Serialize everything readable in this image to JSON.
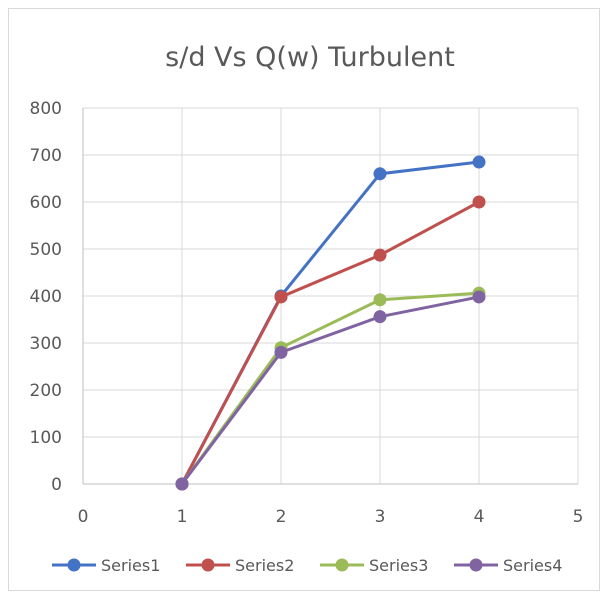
{
  "chart_data": {
    "type": "line",
    "title": "s/d Vs Q(w) Turbulent",
    "xlabel": "",
    "ylabel": "",
    "x": [
      1,
      2,
      3,
      4
    ],
    "xlim": [
      0,
      5
    ],
    "ylim": [
      0,
      800
    ],
    "x_ticks": [
      "0",
      "1",
      "2",
      "3",
      "4",
      "5"
    ],
    "y_ticks": [
      "0",
      "100",
      "200",
      "300",
      "400",
      "500",
      "600",
      "700",
      "800"
    ],
    "grid": true,
    "legend_position": "bottom",
    "series": [
      {
        "name": "Series1",
        "color": "#4472c4",
        "values": [
          0,
          400,
          660,
          685
        ]
      },
      {
        "name": "Series2",
        "color": "#c0504d",
        "values": [
          0,
          398,
          487,
          600
        ]
      },
      {
        "name": "Series3",
        "color": "#9bbb59",
        "values": [
          0,
          290,
          392,
          406
        ]
      },
      {
        "name": "Series4",
        "color": "#8064a2",
        "values": [
          0,
          280,
          356,
          398
        ]
      }
    ]
  }
}
